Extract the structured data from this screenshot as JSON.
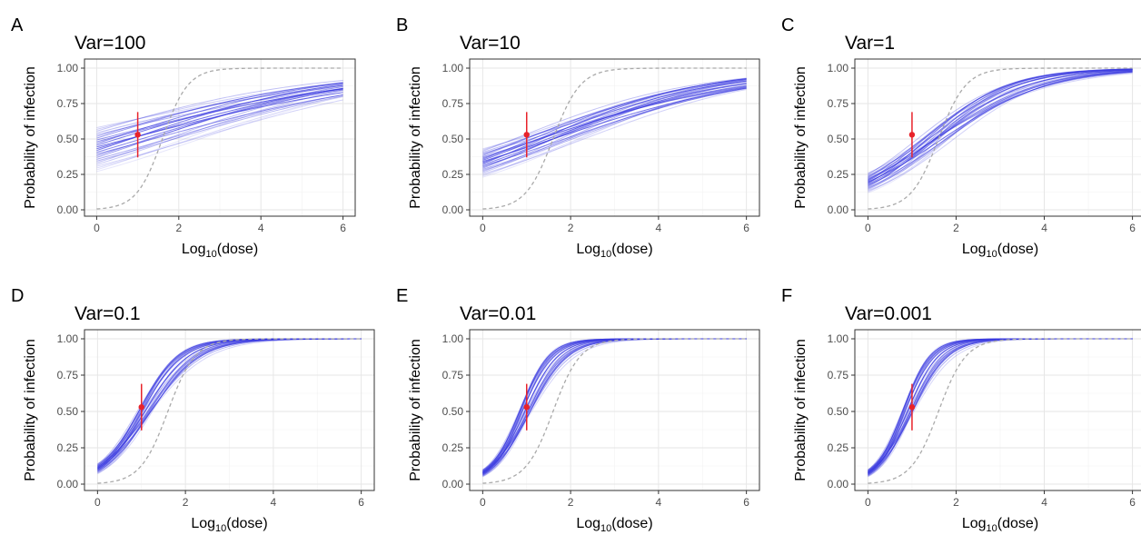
{
  "chart_data": [
    {
      "panel_label": "A",
      "title": "Var=100",
      "type": "line",
      "xlabel": "Log",
      "xlabel_sub": "10",
      "xlabel_suffix": "(dose)",
      "ylabel": "Probability of infection",
      "xlim": [
        0,
        6
      ],
      "ylim": [
        0,
        1
      ],
      "xticks": [
        0,
        2,
        4,
        6
      ],
      "yticks": [
        "0.00",
        "0.25",
        "0.50",
        "0.75",
        "1.00"
      ],
      "grid": true,
      "curve_family": {
        "count": 26,
        "ymin_at_x0": 0.27,
        "ymax_at_x0": 0.58,
        "slope": 0.38,
        "color": "#3b3be0"
      },
      "reference_curve": {
        "midpoint": 1.6,
        "slope": 3.2,
        "style": "dashed",
        "color": "#aaaaaa"
      },
      "observation": {
        "x": 1,
        "y": 0.53,
        "ylow": 0.37,
        "yhigh": 0.69,
        "color": "#e8232a"
      }
    },
    {
      "panel_label": "B",
      "title": "Var=10",
      "type": "line",
      "xlabel": "Log",
      "xlabel_sub": "10",
      "xlabel_suffix": "(dose)",
      "ylabel": "Probability of infection",
      "xlim": [
        0,
        6
      ],
      "ylim": [
        0,
        1
      ],
      "xticks": [
        0,
        2,
        4,
        6
      ],
      "yticks": [
        "0.00",
        "0.25",
        "0.50",
        "0.75",
        "1.00"
      ],
      "grid": true,
      "curve_family": {
        "count": 26,
        "ymin_at_x0": 0.23,
        "ymax_at_x0": 0.43,
        "slope": 0.52,
        "color": "#3b3be0"
      },
      "reference_curve": {
        "midpoint": 1.6,
        "slope": 3.2,
        "style": "dashed",
        "color": "#aaaaaa"
      },
      "observation": {
        "x": 1,
        "y": 0.53,
        "ylow": 0.37,
        "yhigh": 0.69,
        "color": "#e8232a"
      }
    },
    {
      "panel_label": "C",
      "title": "Var=1",
      "type": "line",
      "xlabel": "Log",
      "xlabel_sub": "10",
      "xlabel_suffix": "(dose)",
      "ylabel": "Probability of infection",
      "xlim": [
        0,
        6
      ],
      "ylim": [
        0,
        1
      ],
      "xticks": [
        0,
        2,
        4,
        6
      ],
      "yticks": [
        "0.00",
        "0.25",
        "0.50",
        "0.75",
        "1.00"
      ],
      "grid": true,
      "curve_family": {
        "count": 26,
        "ymin_at_x0": 0.12,
        "ymax_at_x0": 0.26,
        "slope": 1.05,
        "color": "#3b3be0"
      },
      "reference_curve": {
        "midpoint": 1.6,
        "slope": 3.2,
        "style": "dashed",
        "color": "#aaaaaa"
      },
      "observation": {
        "x": 1,
        "y": 0.53,
        "ylow": 0.37,
        "yhigh": 0.69,
        "color": "#e8232a"
      }
    },
    {
      "panel_label": "D",
      "title": "Var=0.1",
      "type": "line",
      "xlabel": "Log",
      "xlabel_sub": "10",
      "xlabel_suffix": "(dose)",
      "ylabel": "Probability of infection",
      "xlim": [
        0,
        6
      ],
      "ylim": [
        0,
        1
      ],
      "xticks": [
        0,
        2,
        4,
        6
      ],
      "yticks": [
        "0.00",
        "0.25",
        "0.50",
        "0.75",
        "1.00"
      ],
      "grid": true,
      "curve_family": {
        "count": 26,
        "ymin_at_x0": 0.07,
        "ymax_at_x0": 0.14,
        "slope": 2.2,
        "color": "#3b3be0"
      },
      "reference_curve": {
        "midpoint": 1.6,
        "slope": 3.2,
        "style": "dashed",
        "color": "#aaaaaa"
      },
      "observation": {
        "x": 1,
        "y": 0.53,
        "ylow": 0.37,
        "yhigh": 0.69,
        "color": "#e8232a"
      }
    },
    {
      "panel_label": "E",
      "title": "Var=0.01",
      "type": "line",
      "xlabel": "Log",
      "xlabel_sub": "10",
      "xlabel_suffix": "(dose)",
      "ylabel": "Probability of infection",
      "xlim": [
        0,
        6
      ],
      "ylim": [
        0,
        1
      ],
      "xticks": [
        0,
        2,
        4,
        6
      ],
      "yticks": [
        "0.00",
        "0.25",
        "0.50",
        "0.75",
        "1.00"
      ],
      "grid": true,
      "curve_family": {
        "count": 26,
        "ymin_at_x0": 0.05,
        "ymax_at_x0": 0.1,
        "slope": 2.9,
        "color": "#3b3be0"
      },
      "reference_curve": {
        "midpoint": 1.6,
        "slope": 3.2,
        "style": "dashed",
        "color": "#aaaaaa"
      },
      "observation": {
        "x": 1,
        "y": 0.53,
        "ylow": 0.37,
        "yhigh": 0.69,
        "color": "#e8232a"
      }
    },
    {
      "panel_label": "F",
      "title": "Var=0.001",
      "type": "line",
      "xlabel": "Log",
      "xlabel_sub": "10",
      "xlabel_suffix": "(dose)",
      "ylabel": "Probability of infection",
      "xlim": [
        0,
        6
      ],
      "ylim": [
        0,
        1
      ],
      "xticks": [
        0,
        2,
        4,
        6
      ],
      "yticks": [
        "0.00",
        "0.25",
        "0.50",
        "0.75",
        "1.00"
      ],
      "grid": true,
      "curve_family": {
        "count": 26,
        "ymin_at_x0": 0.05,
        "ymax_at_x0": 0.1,
        "slope": 3.1,
        "color": "#3b3be0"
      },
      "reference_curve": {
        "midpoint": 1.6,
        "slope": 3.2,
        "style": "dashed",
        "color": "#aaaaaa"
      },
      "observation": {
        "x": 1,
        "y": 0.53,
        "ylow": 0.37,
        "yhigh": 0.69,
        "color": "#e8232a"
      }
    }
  ]
}
